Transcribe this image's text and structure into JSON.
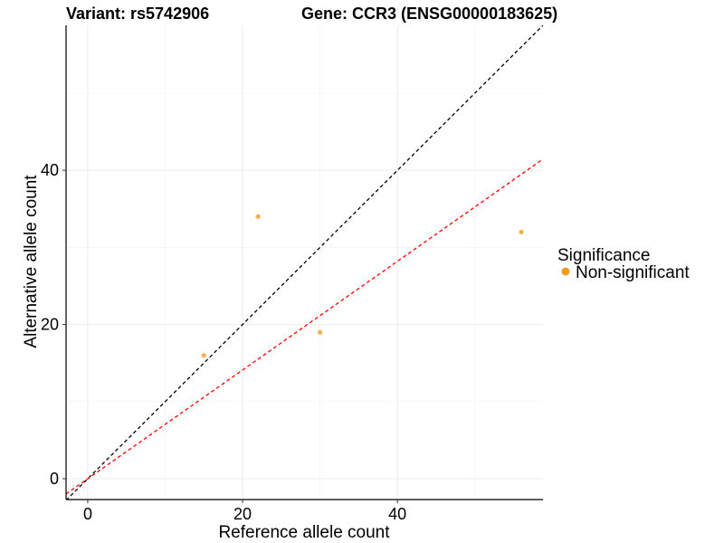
{
  "chart_data": {
    "type": "scatter",
    "title_left": "Variant: rs5742906",
    "title_right": "Gene: CCR3 (ENSG00000183625)",
    "xlabel": "Reference allele count",
    "ylabel": "Alternative allele count",
    "xlim": [
      -2.8,
      58.8
    ],
    "ylim": [
      -2.7,
      58.8
    ],
    "xticks": [
      0,
      20,
      40
    ],
    "yticks": [
      0,
      20,
      40
    ],
    "minor_x": [
      10,
      30,
      50
    ],
    "minor_y": [
      10,
      30,
      50
    ],
    "series": [
      {
        "name": "Non-significant",
        "color": "#f39c1f",
        "points": [
          {
            "x": 15,
            "y": 16
          },
          {
            "x": 22,
            "y": 34
          },
          {
            "x": 30,
            "y": 19
          },
          {
            "x": 56,
            "y": 32
          }
        ]
      }
    ],
    "reference_lines": [
      {
        "name": "identity-line",
        "slope": 1.0,
        "intercept": 0,
        "color": "#000000"
      },
      {
        "name": "fit-line",
        "slope": 0.705,
        "intercept": 0,
        "color": "#ff0000"
      }
    ],
    "legend": {
      "title": "Significance",
      "position": "right",
      "items": [
        {
          "label": "Non-significant",
          "color": "#f39c1f"
        }
      ]
    }
  }
}
